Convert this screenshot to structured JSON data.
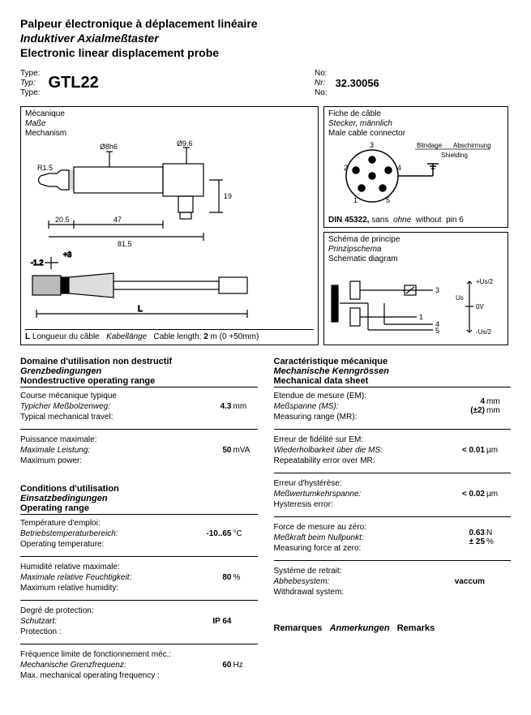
{
  "title": {
    "fr": "Palpeur électronique à déplacement linéaire",
    "de": "Induktiver Axialmeßtaster",
    "en": "Electronic linear displacement probe"
  },
  "header": {
    "type_labels": {
      "fr": "Type:",
      "de": "Typ:",
      "en": "Type:"
    },
    "type_value": "GTL22",
    "no_labels": {
      "fr": "No:",
      "de": "Nr:",
      "en": "No:"
    },
    "no_value": "32.30056"
  },
  "diagrams": {
    "mechanism": {
      "label_fr": "Mécanique",
      "label_de": "Maße",
      "label_en": "Mechanism",
      "dims": {
        "r": "R1.5",
        "d1": "Ø8h6",
        "d2": "Ø9.6",
        "a": "20.5",
        "b": "47",
        "c": "81.5",
        "h": "19",
        "tol_lo": "-1.2",
        "tol_hi": "+3",
        "L": "L"
      },
      "caption_L": "L",
      "caption_fr": "Longueur du câble",
      "caption_de": "Kabellänge",
      "caption_en": "Cable length:",
      "caption_val": "2",
      "caption_unit": "m (0 +50mm)"
    },
    "connector": {
      "label_fr": "Fiche de câble",
      "label_de": "Stecker, männlich",
      "label_en": "Male cable connector",
      "pins": [
        "1",
        "2",
        "3",
        "4",
        "5"
      ],
      "shield_fr": "Blindage",
      "shield_de": "Abschirmung",
      "shield_en": "Shielding",
      "din_bold": "DIN 45322,",
      "din_fr": "sans",
      "din_de": "ohne",
      "din_en": "without",
      "din_tail": "pin 6"
    },
    "schematic": {
      "label_fr": "Schéma de principe",
      "label_de": "Prinzipschema",
      "label_en": "Schematic diagram",
      "sig": {
        "p3": "3",
        "p1": "1",
        "p4": "4",
        "p5": "5",
        "up": "+Us/2",
        "us": "Us",
        "zero": "0V",
        "dn": "-Us/2"
      }
    }
  },
  "left_sections": [
    {
      "head": {
        "fr": "Domaine d'utilisation non destructif",
        "de": "Grenzbedingungen",
        "en": "Nondestructive operating range"
      },
      "items": [
        {
          "fr": "Course mécanique typique",
          "de": "Typicher Meßbolzenweg:",
          "en": "Typical mechanical travel:",
          "val": "4.3",
          "unit": "mm"
        },
        {
          "fr": "Puissance maximale:",
          "de": "Maximale Leistung:",
          "en": "Maximum power:",
          "val": "50",
          "unit": "mVA"
        }
      ]
    },
    {
      "head": {
        "fr": "Conditions d'utilisation",
        "de": "Einsatzbedingungen",
        "en": "Operating range"
      },
      "items": [
        {
          "fr": "Température d'emploi:",
          "de": "Betriebstemperaturbereich:",
          "en": "Operating temperature:",
          "val": "-10..65",
          "unit": "°C"
        },
        {
          "fr": "Humidité relative maximale:",
          "de": "Maximale relative Feuchtigkeit:",
          "en": "Maximum relative humidity:",
          "val": "80",
          "unit": "%"
        },
        {
          "fr": "Degré de protection:",
          "de": "Schutzart:",
          "en": "Protection :",
          "val": "IP 64",
          "unit": ""
        },
        {
          "fr": "Fréquence limite de fonctionnement méc.:",
          "de": "Mechanische Grenzfrequenz:",
          "en": "Max. mechanical operating frequency :",
          "val": "60",
          "unit": "Hz"
        }
      ]
    }
  ],
  "right_sections": [
    {
      "head": {
        "fr": "Caractéristique mécanique",
        "de": "Mechanische Kenngrössen",
        "en": "Mechanical data sheet"
      },
      "items": [
        {
          "fr": "Etendue de mesure (EM):",
          "de": "Meßspanne (MS):",
          "en": "Measuring range (MR):",
          "val": "4",
          "val2": "(±2)",
          "unit": "mm",
          "unit2": "mm"
        },
        {
          "fr": "Erreur de fidélité sur EM:",
          "de": "Wiederholbarkeit über die MS:",
          "en": "Repeatability error over MR:",
          "val": "< 0.01",
          "unit": "µm"
        },
        {
          "fr": "Erreur d'hystérèse:",
          "de": "Meßwertumkehrspanne:",
          "en": "Hysteresis error:",
          "val": "< 0.02",
          "unit": "µm"
        },
        {
          "fr": "Force de mesure au zéro:",
          "de": "Meßkraft beim Nullpunkt:",
          "en": "Measuring force at zero:",
          "val": "0.63",
          "val2": "± 25",
          "unit": "N",
          "unit2": "%"
        },
        {
          "fr": "Système de retrait:",
          "de": "Abhebesystem:",
          "en": "Withdrawal system:",
          "val": "vaccum",
          "unit": ""
        }
      ]
    }
  ],
  "remarks": {
    "fr": "Remarques",
    "de": "Anmerkungen",
    "en": "Remarks"
  }
}
